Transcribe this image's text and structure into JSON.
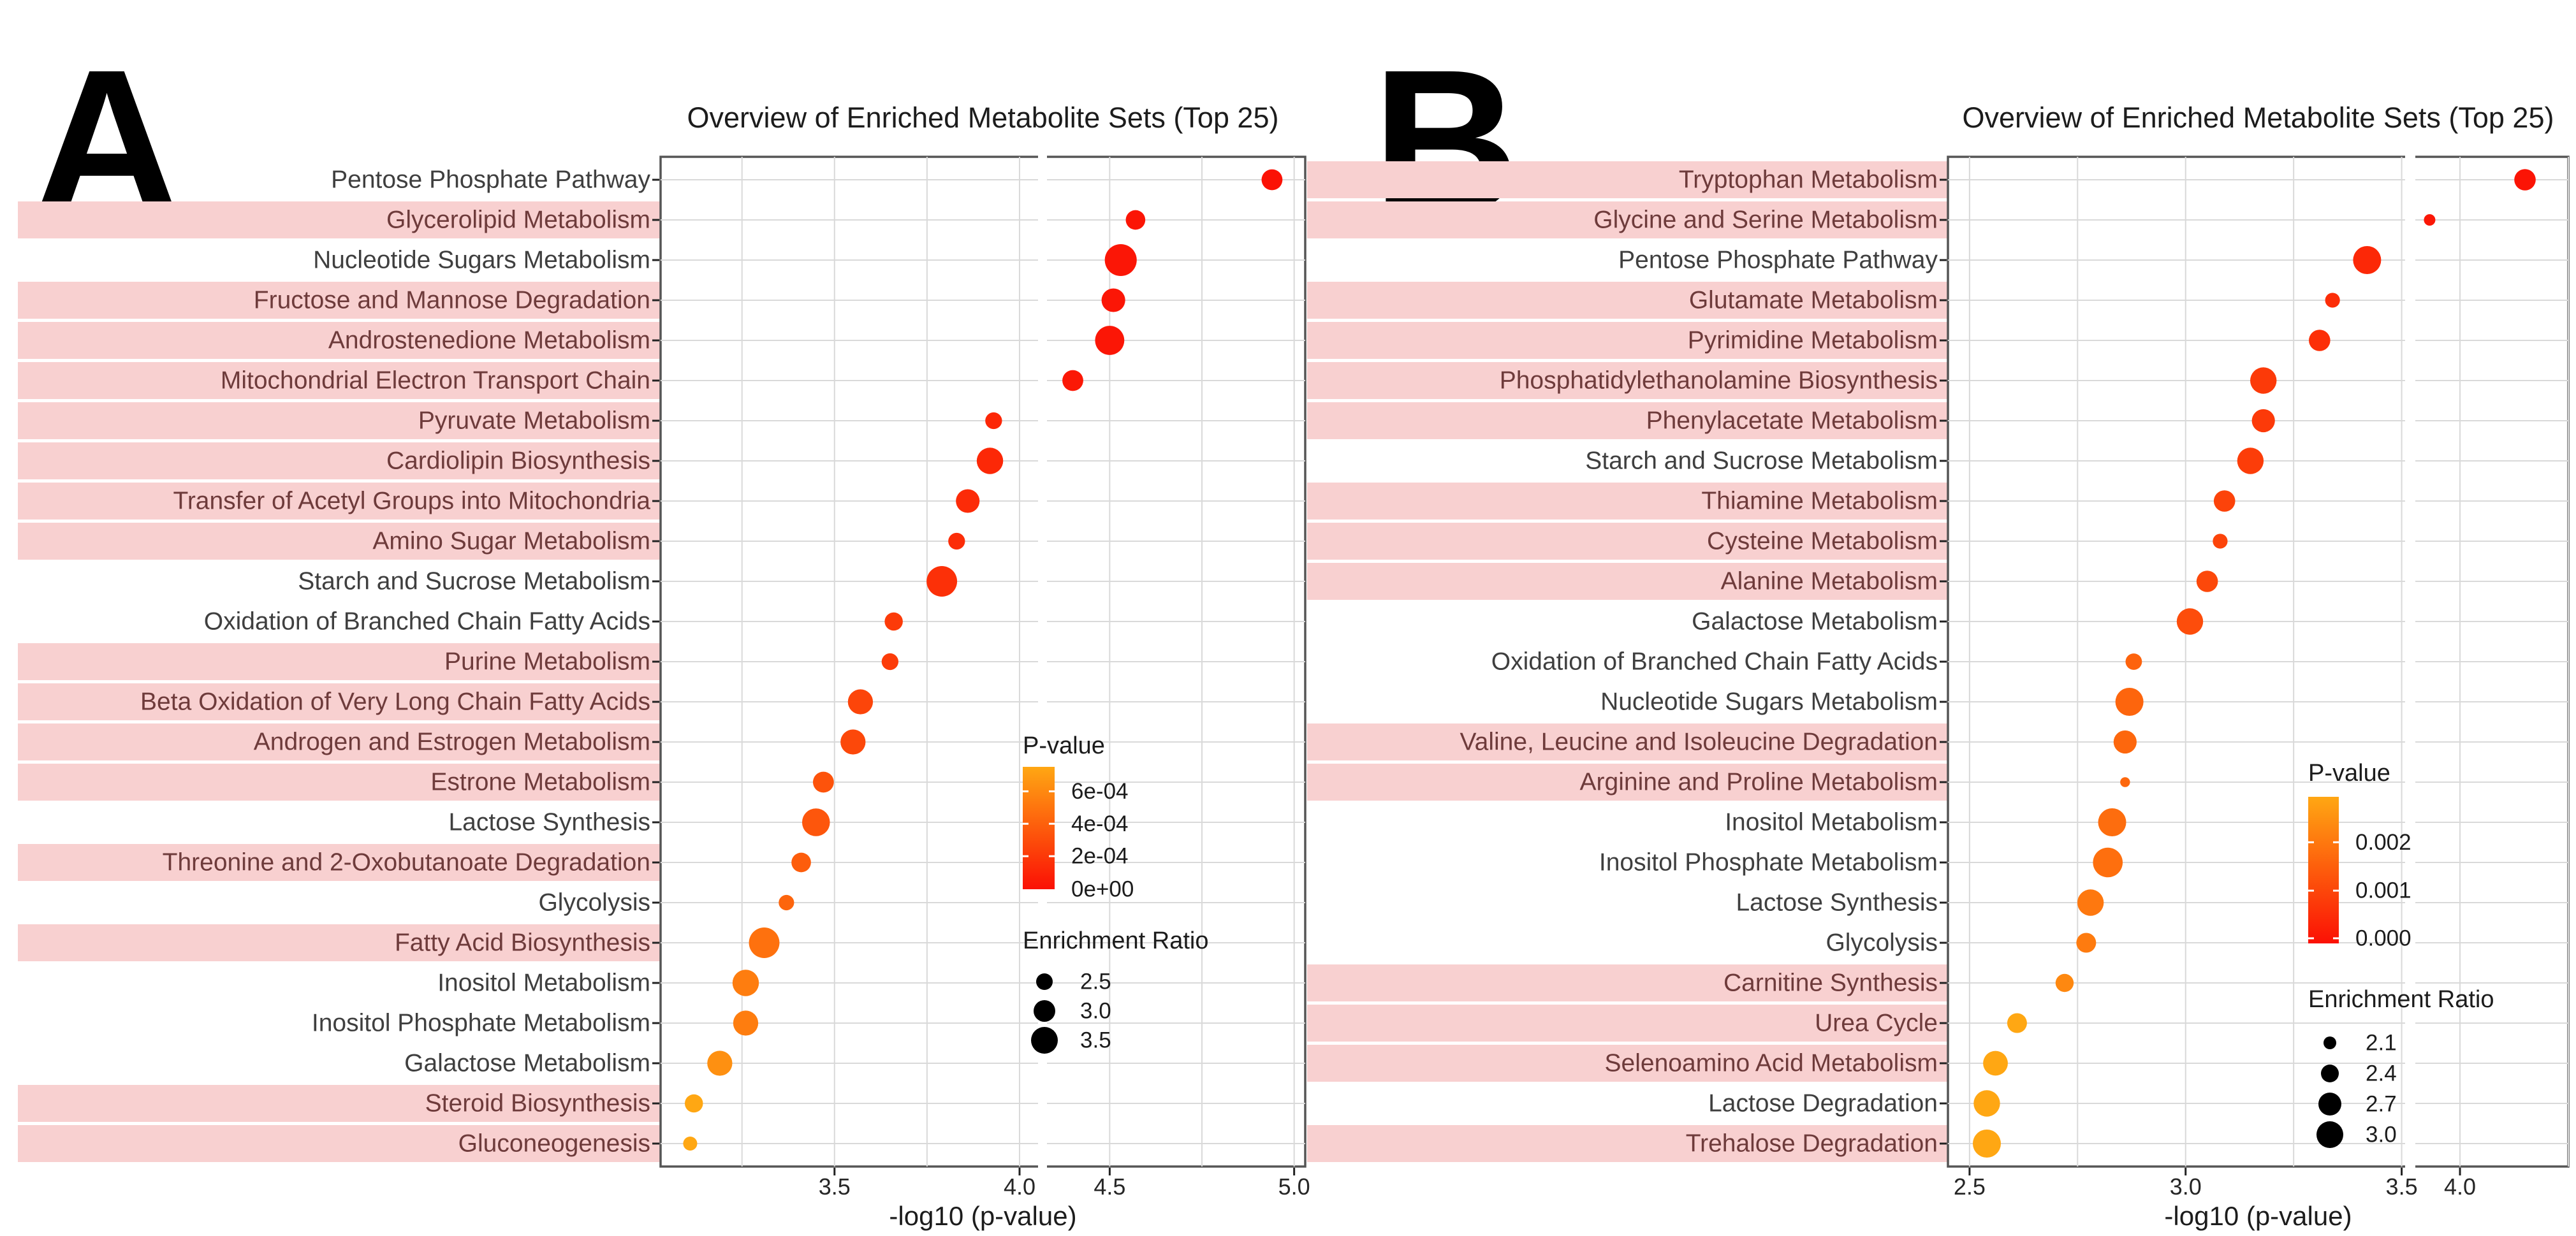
{
  "chart_data": [
    {
      "type": "scatter",
      "panel_label": "A",
      "title": "Overview of Enriched Metabolite Sets (Top 25)",
      "xlabel": "-log10 (p-value)",
      "x_ticks": [
        "3.5",
        "4.0",
        "4.5",
        "5.0"
      ],
      "x_tick_values": [
        3.5,
        4.0,
        4.5,
        5.0
      ],
      "x_range": [
        3.03,
        5.03
      ],
      "axis_break": {
        "from": 4.05,
        "to": 4.33
      },
      "grid_step": 0.25,
      "color_scale": {
        "zero_p_color": "#fb1005",
        "high_p_color": "#ffa713",
        "p_max": 0.00076
      },
      "highlight_color": "#f8d0d0",
      "legend": {
        "pvalue_title": "P-value",
        "pvalue_tick_labels": [
          "6e-04",
          "4e-04",
          "2e-04",
          "0e+00"
        ],
        "enrichment_title": "Enrichment Ratio",
        "enrichment_sizes": [
          "2.5",
          "3.0",
          "3.5"
        ]
      },
      "rows": [
        {
          "label": "Pentose Phosphate Pathway",
          "highlighted": false,
          "neg_log10_p": 4.94,
          "enrichment_ratio": 2.7
        },
        {
          "label": "Glycerolipid Metabolism",
          "highlighted": true,
          "neg_log10_p": 4.57,
          "enrichment_ratio": 2.6
        },
        {
          "label": "Nucleotide Sugars Metabolism",
          "highlighted": false,
          "neg_log10_p": 4.53,
          "enrichment_ratio": 3.5
        },
        {
          "label": "Fructose and Mannose Degradation",
          "highlighted": true,
          "neg_log10_p": 4.51,
          "enrichment_ratio": 2.9
        },
        {
          "label": "Androstenedione Metabolism",
          "highlighted": true,
          "neg_log10_p": 4.5,
          "enrichment_ratio": 3.3
        },
        {
          "label": "Mitochondrial Electron Transport Chain",
          "highlighted": true,
          "neg_log10_p": 4.4,
          "enrichment_ratio": 2.7
        },
        {
          "label": "Pyruvate Metabolism",
          "highlighted": true,
          "neg_log10_p": 3.93,
          "enrichment_ratio": 2.4
        },
        {
          "label": "Cardiolipin Biosynthesis",
          "highlighted": true,
          "neg_log10_p": 3.92,
          "enrichment_ratio": 3.1
        },
        {
          "label": "Transfer of Acetyl Groups into Mitochondria",
          "highlighted": true,
          "neg_log10_p": 3.86,
          "enrichment_ratio": 2.9
        },
        {
          "label": "Amino Sugar Metabolism",
          "highlighted": true,
          "neg_log10_p": 3.83,
          "enrichment_ratio": 2.4
        },
        {
          "label": "Starch and Sucrose Metabolism",
          "highlighted": false,
          "neg_log10_p": 3.79,
          "enrichment_ratio": 3.4
        },
        {
          "label": "Oxidation of Branched Chain Fatty Acids",
          "highlighted": false,
          "neg_log10_p": 3.66,
          "enrichment_ratio": 2.5
        },
        {
          "label": "Purine Metabolism",
          "highlighted": true,
          "neg_log10_p": 3.65,
          "enrichment_ratio": 2.4
        },
        {
          "label": "Beta Oxidation of Very Long Chain Fatty Acids",
          "highlighted": true,
          "neg_log10_p": 3.57,
          "enrichment_ratio": 3.0
        },
        {
          "label": "Androgen and Estrogen Metabolism",
          "highlighted": true,
          "neg_log10_p": 3.55,
          "enrichment_ratio": 3.0
        },
        {
          "label": "Estrone Metabolism",
          "highlighted": true,
          "neg_log10_p": 3.47,
          "enrichment_ratio": 2.7
        },
        {
          "label": "Lactose Synthesis",
          "highlighted": false,
          "neg_log10_p": 3.45,
          "enrichment_ratio": 3.2
        },
        {
          "label": "Threonine and 2-Oxobutanoate Degradation",
          "highlighted": true,
          "neg_log10_p": 3.41,
          "enrichment_ratio": 2.6
        },
        {
          "label": "Glycolysis",
          "highlighted": false,
          "neg_log10_p": 3.37,
          "enrichment_ratio": 2.3
        },
        {
          "label": "Fatty Acid Biosynthesis",
          "highlighted": true,
          "neg_log10_p": 3.31,
          "enrichment_ratio": 3.4
        },
        {
          "label": "Inositol Metabolism",
          "highlighted": false,
          "neg_log10_p": 3.26,
          "enrichment_ratio": 3.1
        },
        {
          "label": "Inositol Phosphate Metabolism",
          "highlighted": false,
          "neg_log10_p": 3.26,
          "enrichment_ratio": 3.0
        },
        {
          "label": "Galactose Metabolism",
          "highlighted": false,
          "neg_log10_p": 3.19,
          "enrichment_ratio": 3.0
        },
        {
          "label": "Steroid Biosynthesis",
          "highlighted": true,
          "neg_log10_p": 3.12,
          "enrichment_ratio": 2.5
        },
        {
          "label": "Gluconeogenesis",
          "highlighted": true,
          "neg_log10_p": 3.11,
          "enrichment_ratio": 2.2
        }
      ]
    },
    {
      "type": "scatter",
      "panel_label": "B",
      "title": "Overview of Enriched Metabolite Sets (Top 25)",
      "xlabel": "-log10 (p-value)",
      "x_ticks": [
        "2.5",
        "3.0",
        "3.5",
        "4.0"
      ],
      "x_tick_values": [
        2.5,
        3.0,
        3.5,
        4.0
      ],
      "x_range": [
        2.45,
        4.25
      ],
      "axis_break": {
        "from": 3.51,
        "to": 3.9
      },
      "grid_step": 0.25,
      "color_scale": {
        "zero_p_color": "#fb1005",
        "high_p_color": "#ffa713",
        "p_max": 0.0024
      },
      "highlight_color": "#f8d0d0",
      "legend": {
        "pvalue_title": "P-value",
        "pvalue_tick_labels": [
          "0.002",
          "0.001",
          "0.000"
        ],
        "enrichment_title": "Enrichment Ratio",
        "enrichment_sizes": [
          "2.1",
          "2.4",
          "2.7",
          "3.0"
        ]
      },
      "rows": [
        {
          "label": "Tryptophan Metabolism",
          "highlighted": true,
          "neg_log10_p": 4.15,
          "enrichment_ratio": 2.6
        },
        {
          "label": "Glycine and Serine Metabolism",
          "highlighted": true,
          "neg_log10_p": 3.93,
          "enrichment_ratio": 2.0
        },
        {
          "label": "Pentose Phosphate Pathway",
          "highlighted": false,
          "neg_log10_p": 3.42,
          "enrichment_ratio": 3.0
        },
        {
          "label": "Glutamate Metabolism",
          "highlighted": true,
          "neg_log10_p": 3.34,
          "enrichment_ratio": 2.2
        },
        {
          "label": "Pyrimidine Metabolism",
          "highlighted": true,
          "neg_log10_p": 3.31,
          "enrichment_ratio": 2.6
        },
        {
          "label": "Phosphatidylethanolamine Biosynthesis",
          "highlighted": true,
          "neg_log10_p": 3.18,
          "enrichment_ratio": 2.9
        },
        {
          "label": "Phenylacetate Metabolism",
          "highlighted": true,
          "neg_log10_p": 3.18,
          "enrichment_ratio": 2.7
        },
        {
          "label": "Starch and Sucrose Metabolism",
          "highlighted": false,
          "neg_log10_p": 3.15,
          "enrichment_ratio": 2.9
        },
        {
          "label": "Thiamine Metabolism",
          "highlighted": true,
          "neg_log10_p": 3.09,
          "enrichment_ratio": 2.6
        },
        {
          "label": "Cysteine Metabolism",
          "highlighted": true,
          "neg_log10_p": 3.08,
          "enrichment_ratio": 2.2
        },
        {
          "label": "Alanine Metabolism",
          "highlighted": true,
          "neg_log10_p": 3.05,
          "enrichment_ratio": 2.6
        },
        {
          "label": "Galactose Metabolism",
          "highlighted": false,
          "neg_log10_p": 3.01,
          "enrichment_ratio": 2.9
        },
        {
          "label": "Oxidation of Branched Chain Fatty Acids",
          "highlighted": false,
          "neg_log10_p": 2.88,
          "enrichment_ratio": 2.3
        },
        {
          "label": "Nucleotide Sugars Metabolism",
          "highlighted": false,
          "neg_log10_p": 2.87,
          "enrichment_ratio": 3.0
        },
        {
          "label": "Valine, Leucine and Isoleucine Degradation",
          "highlighted": true,
          "neg_log10_p": 2.86,
          "enrichment_ratio": 2.7
        },
        {
          "label": "Arginine and Proline Metabolism",
          "highlighted": true,
          "neg_log10_p": 2.86,
          "enrichment_ratio": 1.9
        },
        {
          "label": "Inositol Metabolism",
          "highlighted": false,
          "neg_log10_p": 2.83,
          "enrichment_ratio": 3.0
        },
        {
          "label": "Inositol Phosphate Metabolism",
          "highlighted": false,
          "neg_log10_p": 2.82,
          "enrichment_ratio": 3.1
        },
        {
          "label": "Lactose Synthesis",
          "highlighted": false,
          "neg_log10_p": 2.78,
          "enrichment_ratio": 2.9
        },
        {
          "label": "Glycolysis",
          "highlighted": false,
          "neg_log10_p": 2.77,
          "enrichment_ratio": 2.5
        },
        {
          "label": "Carnitine Synthesis",
          "highlighted": true,
          "neg_log10_p": 2.72,
          "enrichment_ratio": 2.4
        },
        {
          "label": "Urea Cycle",
          "highlighted": true,
          "neg_log10_p": 2.61,
          "enrichment_ratio": 2.5
        },
        {
          "label": "Selenoamino Acid Metabolism",
          "highlighted": true,
          "neg_log10_p": 2.56,
          "enrichment_ratio": 2.8
        },
        {
          "label": "Lactose Degradation",
          "highlighted": false,
          "neg_log10_p": 2.54,
          "enrichment_ratio": 2.9
        },
        {
          "label": "Trehalose Degradation",
          "highlighted": true,
          "neg_log10_p": 2.54,
          "enrichment_ratio": 3.0
        }
      ]
    }
  ]
}
